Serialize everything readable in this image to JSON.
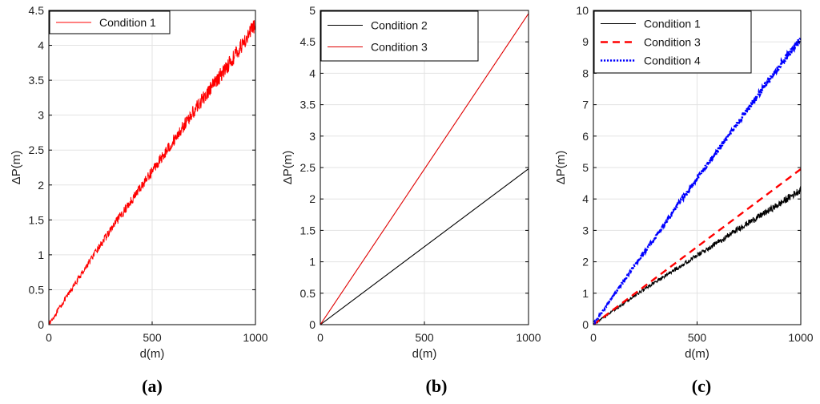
{
  "chart_data": [
    {
      "panel_label": "(a)",
      "type": "line",
      "xlabel": "d(m)",
      "ylabel": "ΔP(m)",
      "xlim": [
        0,
        1000
      ],
      "ylim": [
        0,
        4.5
      ],
      "xticks": [
        0,
        500,
        1000
      ],
      "yticks": [
        0,
        0.5,
        1,
        1.5,
        2,
        2.5,
        3,
        3.5,
        4,
        4.5
      ],
      "grid": true,
      "legend_position": "top-left",
      "series": [
        {
          "name": "Condition 1",
          "color": "#ff0000",
          "style": "solid",
          "noise": true,
          "amplitude": 0.12,
          "x": [
            0,
            100,
            200,
            300,
            400,
            500,
            600,
            700,
            800,
            900,
            1000
          ],
          "y": [
            0,
            0.46,
            0.92,
            1.36,
            1.78,
            2.2,
            2.62,
            3.05,
            3.45,
            3.85,
            4.3
          ]
        }
      ]
    },
    {
      "panel_label": "(b)",
      "type": "line",
      "xlabel": "d(m)",
      "ylabel": "ΔP(m)",
      "xlim": [
        0,
        1000
      ],
      "ylim": [
        0,
        5
      ],
      "xticks": [
        0,
        500,
        1000
      ],
      "yticks": [
        0,
        0.5,
        1,
        1.5,
        2,
        2.5,
        3,
        3.5,
        4,
        4.5,
        5
      ],
      "grid": true,
      "legend_position": "top-left",
      "series": [
        {
          "name": "Condition 2",
          "color": "#000000",
          "style": "solid",
          "noise": false,
          "x": [
            0,
            1000
          ],
          "y": [
            0,
            2.48
          ]
        },
        {
          "name": "Condition 3",
          "color": "#e00000",
          "style": "solid",
          "noise": false,
          "x": [
            0,
            1000
          ],
          "y": [
            0,
            4.95
          ]
        }
      ]
    },
    {
      "panel_label": "(c)",
      "type": "line",
      "xlabel": "d(m)",
      "ylabel": "ΔP(m)",
      "xlim": [
        0,
        1000
      ],
      "ylim": [
        0,
        10
      ],
      "xticks": [
        0,
        500,
        1000
      ],
      "yticks": [
        0,
        1,
        2,
        3,
        4,
        5,
        6,
        7,
        8,
        9,
        10
      ],
      "grid": true,
      "legend_position": "top-left",
      "series": [
        {
          "name": "Condition 1",
          "color": "#000000",
          "style": "solid",
          "noise": true,
          "amplitude": 0.12,
          "x": [
            0,
            100,
            200,
            300,
            400,
            500,
            600,
            700,
            800,
            900,
            1000
          ],
          "y": [
            0,
            0.46,
            0.92,
            1.36,
            1.78,
            2.2,
            2.62,
            3.05,
            3.45,
            3.85,
            4.3
          ]
        },
        {
          "name": "Condition 3",
          "color": "#ff0000",
          "style": "dashed",
          "noise": false,
          "x": [
            0,
            1000
          ],
          "y": [
            0,
            4.95
          ]
        },
        {
          "name": "Condition 4",
          "color": "#0000ff",
          "style": "dotted",
          "noise": true,
          "amplitude": 0.1,
          "x": [
            0,
            100,
            200,
            300,
            400,
            500,
            600,
            700,
            800,
            900,
            1000
          ],
          "y": [
            0,
            0.95,
            1.9,
            2.8,
            3.75,
            4.65,
            5.55,
            6.45,
            7.35,
            8.25,
            9.1
          ]
        }
      ]
    }
  ]
}
